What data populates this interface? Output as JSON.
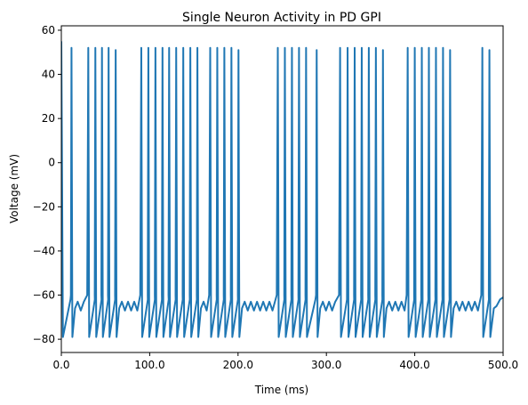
{
  "chart_data": {
    "type": "line",
    "title": "Single Neuron Activity in PD GPI",
    "xlabel": "Time (ms)",
    "ylabel": "Voltage (mV)",
    "xlim": [
      0,
      500
    ],
    "ylim": [
      -86,
      62
    ],
    "xticks": [
      0,
      100,
      200,
      300,
      400,
      500
    ],
    "xtick_labels": [
      "0.0",
      "100.0",
      "200.0",
      "300.0",
      "400.0",
      "500.0"
    ],
    "yticks": [
      -80,
      -60,
      -40,
      -20,
      0,
      20,
      40,
      60
    ],
    "ytick_labels": [
      "−80",
      "−60",
      "−40",
      "−20",
      "0",
      "20",
      "40",
      "60"
    ],
    "grid": false,
    "line_color": "#1f77b4",
    "series": [
      {
        "spike_times": [
          0.8,
          11.5,
          30.5,
          38.5,
          46,
          53.5,
          61.5,
          90.5,
          98.5,
          106.5,
          114.5,
          122,
          130,
          138,
          146,
          154,
          168.5,
          176.5,
          184.5,
          192.5,
          200.5,
          245,
          253,
          261,
          269,
          277,
          289,
          315.5,
          324,
          332,
          340,
          348,
          356,
          364,
          392,
          400,
          408,
          416,
          424,
          432,
          440,
          476.5,
          484.5
        ],
        "spike_peaks": [
          55,
          52,
          52,
          52,
          52,
          52,
          51,
          52,
          52,
          52,
          52,
          52,
          52,
          52,
          52,
          52,
          52,
          52,
          52,
          52,
          51,
          52,
          52,
          52,
          52,
          52,
          51,
          52,
          52,
          52,
          52,
          52,
          52,
          51,
          52,
          52,
          52,
          52,
          52,
          52,
          51,
          52,
          51
        ],
        "spike_troughs": [
          -79,
          -79,
          -79,
          -79,
          -79,
          -79,
          -79,
          -79,
          -79,
          -79,
          -79,
          -79,
          -79,
          -79,
          -79,
          -79,
          -79,
          -79,
          -79,
          -79,
          -79,
          -79,
          -79,
          -79,
          -79,
          -79,
          -79,
          -79,
          -79,
          -79,
          -79,
          -79,
          -79,
          -79,
          -79,
          -79,
          -79,
          -79,
          -79,
          -79,
          -79,
          -79,
          -79
        ],
        "rest_potential": -62
      }
    ]
  }
}
